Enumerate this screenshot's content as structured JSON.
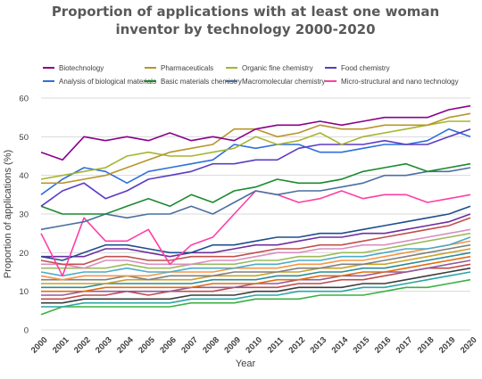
{
  "chart_data": {
    "type": "line",
    "title": [
      "Proportion of applications with at least one woman",
      "inventor by technology 2000-2020"
    ],
    "xlabel": "Year",
    "ylabel": "Proportion of applications (%)",
    "ylim": [
      0,
      60
    ],
    "yticks": [
      0,
      10,
      20,
      30,
      40,
      50,
      60
    ],
    "grid": "horizontal",
    "legend_position": "top",
    "x": [
      "2000",
      "2001",
      "2002",
      "2003",
      "2004",
      "2005",
      "2006",
      "2007",
      "2008",
      "2009",
      "2010",
      "2011",
      "2012",
      "2013",
      "2014",
      "2015",
      "2016",
      "2017",
      "2018",
      "2019",
      "2020"
    ],
    "series": [
      {
        "name": "Biotechnology",
        "color": "#8b008b",
        "values": [
          46,
          44,
          50,
          49,
          50,
          49,
          51,
          49,
          50,
          49,
          52,
          53,
          53,
          54,
          53,
          54,
          55,
          55,
          55,
          57,
          58
        ]
      },
      {
        "name": "Pharmaceuticals",
        "color": "#b8952a",
        "values": [
          38,
          38,
          39,
          40,
          42,
          44,
          46,
          47,
          48,
          52,
          52,
          50,
          51,
          53,
          52,
          52,
          53,
          53,
          53,
          55,
          56
        ]
      },
      {
        "name": "Organic fine chemistry",
        "color": "#a6b62e",
        "values": [
          39,
          40,
          41,
          42,
          45,
          46,
          45,
          45,
          46,
          47,
          50,
          48,
          49,
          51,
          48,
          50,
          51,
          52,
          53,
          54,
          54
        ]
      },
      {
        "name": "Food chemistry",
        "color": "#5b3cc4",
        "values": [
          32,
          36,
          38,
          34,
          36,
          39,
          40,
          41,
          43,
          43,
          44,
          44,
          47,
          48,
          48,
          48,
          49,
          48,
          48,
          50,
          52
        ]
      },
      {
        "name": "Analysis of biological materials",
        "color": "#2e6fdb",
        "values": [
          35,
          39,
          42,
          41,
          38,
          41,
          42,
          43,
          44,
          48,
          47,
          48,
          48,
          46,
          46,
          47,
          48,
          48,
          49,
          52,
          50
        ]
      },
      {
        "name": "Basic materials chemistry",
        "color": "#1a8a2e",
        "values": [
          32,
          30,
          30,
          30,
          32,
          34,
          32,
          35,
          33,
          36,
          37,
          39,
          38,
          38,
          39,
          41,
          42,
          43,
          41,
          42,
          43
        ]
      },
      {
        "name": "Macromolecular chemistry",
        "color": "#4a6fa0",
        "values": [
          26,
          27,
          28,
          30,
          29,
          30,
          30,
          32,
          30,
          33,
          36,
          35,
          36,
          36,
          37,
          38,
          40,
          40,
          41,
          41,
          42
        ]
      },
      {
        "name": "Micro-structural and nano technology",
        "color": "#ff3ea5",
        "values": [
          25,
          14,
          29,
          23,
          23,
          26,
          17,
          22,
          24,
          30,
          36,
          35,
          33,
          34,
          36,
          34,
          35,
          35,
          33,
          34,
          35
        ]
      },
      {
        "name": "",
        "color": "#1f4e8c",
        "values": [
          19,
          18,
          20,
          22,
          22,
          21,
          20,
          20,
          22,
          22,
          23,
          24,
          24,
          25,
          25,
          26,
          27,
          28,
          29,
          30,
          32
        ]
      },
      {
        "name": "",
        "color": "#6f2f9f",
        "values": [
          19,
          19,
          19,
          21,
          21,
          20,
          19,
          20,
          20,
          21,
          22,
          22,
          23,
          24,
          24,
          25,
          25,
          26,
          27,
          28,
          30
        ]
      },
      {
        "name": "",
        "color": "#c0504d",
        "values": [
          18,
          17,
          17,
          19,
          19,
          18,
          18,
          19,
          19,
          19,
          20,
          21,
          21,
          22,
          22,
          23,
          24,
          25,
          26,
          27,
          29
        ]
      },
      {
        "name": "",
        "color": "#d88fbf",
        "values": [
          17,
          17,
          16,
          18,
          18,
          17,
          17,
          17,
          18,
          18,
          19,
          20,
          20,
          21,
          21,
          22,
          22,
          23,
          24,
          25,
          26
        ]
      },
      {
        "name": "",
        "color": "#9bbb59",
        "values": [
          16,
          16,
          16,
          16,
          17,
          16,
          16,
          17,
          17,
          17,
          18,
          18,
          19,
          19,
          20,
          20,
          21,
          22,
          23,
          24,
          25
        ]
      },
      {
        "name": "",
        "color": "#4bacc6",
        "values": [
          15,
          14,
          15,
          15,
          16,
          15,
          15,
          16,
          16,
          16,
          17,
          17,
          18,
          18,
          19,
          19,
          20,
          21,
          21,
          22,
          24
        ]
      },
      {
        "name": "",
        "color": "#f79646",
        "values": [
          14,
          13,
          14,
          14,
          14,
          14,
          15,
          15,
          15,
          16,
          16,
          16,
          17,
          17,
          18,
          18,
          19,
          20,
          21,
          22,
          23
        ]
      },
      {
        "name": "",
        "color": "#7f7f7f",
        "values": [
          13,
          13,
          13,
          13,
          14,
          13,
          14,
          14,
          14,
          15,
          15,
          15,
          16,
          16,
          17,
          17,
          18,
          19,
          20,
          21,
          22
        ]
      },
      {
        "name": "",
        "color": "#c9a227",
        "values": [
          12,
          12,
          12,
          12,
          13,
          13,
          13,
          13,
          14,
          14,
          14,
          15,
          15,
          16,
          16,
          17,
          17,
          18,
          19,
          20,
          21
        ]
      },
      {
        "name": "",
        "color": "#2c8c99",
        "values": [
          11,
          11,
          11,
          12,
          12,
          12,
          12,
          12,
          13,
          13,
          13,
          14,
          14,
          15,
          15,
          16,
          16,
          17,
          18,
          19,
          20
        ]
      },
      {
        "name": "",
        "color": "#e46c0a",
        "values": [
          10,
          10,
          10,
          11,
          11,
          11,
          11,
          11,
          12,
          12,
          12,
          13,
          13,
          14,
          14,
          15,
          15,
          16,
          17,
          18,
          19
        ]
      },
      {
        "name": "",
        "color": "#8e5c9f",
        "values": [
          9,
          9,
          10,
          10,
          10,
          10,
          10,
          11,
          11,
          11,
          12,
          12,
          13,
          13,
          14,
          14,
          15,
          15,
          16,
          17,
          18
        ]
      },
      {
        "name": "",
        "color": "#bf4b4b",
        "values": [
          8,
          8,
          9,
          9,
          10,
          9,
          10,
          10,
          10,
          11,
          11,
          11,
          12,
          12,
          13,
          13,
          14,
          15,
          16,
          16,
          17
        ]
      },
      {
        "name": "",
        "color": "#3d3d3d",
        "values": [
          7,
          7,
          8,
          8,
          8,
          8,
          8,
          9,
          9,
          9,
          10,
          10,
          11,
          11,
          11,
          12,
          12,
          13,
          14,
          15,
          16
        ]
      },
      {
        "name": "",
        "color": "#2ca6a4",
        "values": [
          6,
          6,
          7,
          7,
          7,
          7,
          7,
          8,
          8,
          8,
          9,
          9,
          10,
          10,
          10,
          11,
          11,
          12,
          13,
          14,
          15
        ]
      },
      {
        "name": "",
        "color": "#3cb043",
        "values": [
          4,
          6,
          6,
          6,
          6,
          6,
          6,
          7,
          7,
          7,
          8,
          8,
          8,
          9,
          9,
          9,
          10,
          11,
          11,
          12,
          13
        ]
      }
    ]
  }
}
